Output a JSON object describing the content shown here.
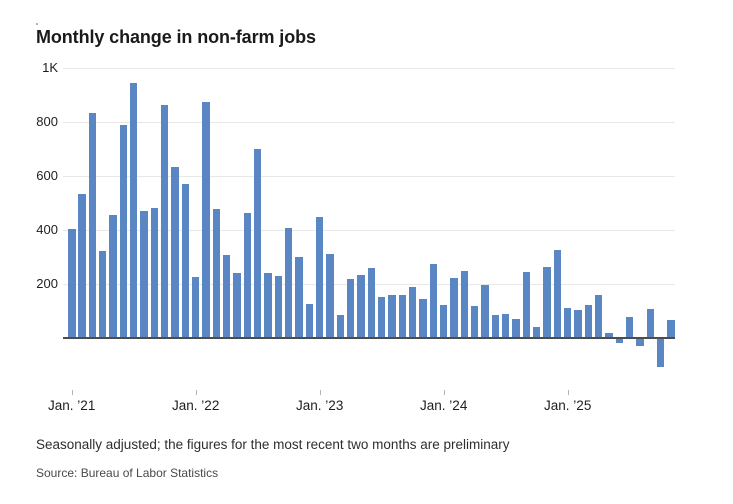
{
  "title": "Monthly change in non-farm jobs",
  "notes": {
    "adjustment": "Seasonally adjusted; the figures for the most recent two months are preliminary",
    "source": "Source: Bureau of Labor Statistics"
  },
  "colors": {
    "bar": "#5b86c4",
    "gridline": "#e8e8e8",
    "zero_axis": "#4d4d4d",
    "text": "#1f1f1f"
  },
  "chart_data": {
    "type": "bar",
    "title": "Monthly change in non-farm jobs",
    "xlabel": "",
    "ylabel": "",
    "grid": true,
    "legend_position": "none",
    "ylim": [
      -150,
      1000
    ],
    "x": [
      "2021-01",
      "2021-02",
      "2021-03",
      "2021-04",
      "2021-05",
      "2021-06",
      "2021-07",
      "2021-08",
      "2021-09",
      "2021-10",
      "2021-11",
      "2021-12",
      "2022-01",
      "2022-02",
      "2022-03",
      "2022-04",
      "2022-05",
      "2022-06",
      "2022-07",
      "2022-08",
      "2022-09",
      "2022-10",
      "2022-11",
      "2022-12",
      "2023-01",
      "2023-02",
      "2023-03",
      "2023-04",
      "2023-05",
      "2023-06",
      "2023-07",
      "2023-08",
      "2023-09",
      "2023-10",
      "2023-11",
      "2023-12",
      "2024-01",
      "2024-02",
      "2024-03",
      "2024-04",
      "2024-05",
      "2024-06",
      "2024-07",
      "2024-08",
      "2024-09",
      "2024-10",
      "2024-11",
      "2024-12",
      "2025-01",
      "2025-02",
      "2025-03",
      "2025-04",
      "2025-05",
      "2025-06",
      "2025-07",
      "2025-08",
      "2025-09",
      "2025-10",
      "2025-11"
    ],
    "values": [
      402,
      530,
      833,
      321,
      455,
      786,
      941,
      467,
      480,
      863,
      632,
      568,
      224,
      872,
      475,
      305,
      240,
      463,
      698,
      240,
      228,
      404,
      298,
      126,
      445,
      308,
      85,
      216,
      230,
      258,
      150,
      158,
      158,
      186,
      143,
      272,
      120,
      222,
      245,
      117,
      193,
      85,
      87,
      70,
      241,
      40,
      262,
      324,
      109,
      102,
      120,
      158,
      17,
      -18,
      75,
      -29,
      105,
      -105,
      64
    ],
    "y_ticks": [
      {
        "value": 1000,
        "label": "1K"
      },
      {
        "value": 800,
        "label": "800"
      },
      {
        "value": 600,
        "label": "600"
      },
      {
        "value": 400,
        "label": "400"
      },
      {
        "value": 200,
        "label": "200"
      }
    ],
    "x_ticks": [
      {
        "index": 0,
        "label": "Jan. ’21"
      },
      {
        "index": 12,
        "label": "Jan. ’22"
      },
      {
        "index": 24,
        "label": "Jan. ’23"
      },
      {
        "index": 36,
        "label": "Jan. ’24"
      },
      {
        "index": 48,
        "label": "Jan. ’25"
      }
    ]
  }
}
